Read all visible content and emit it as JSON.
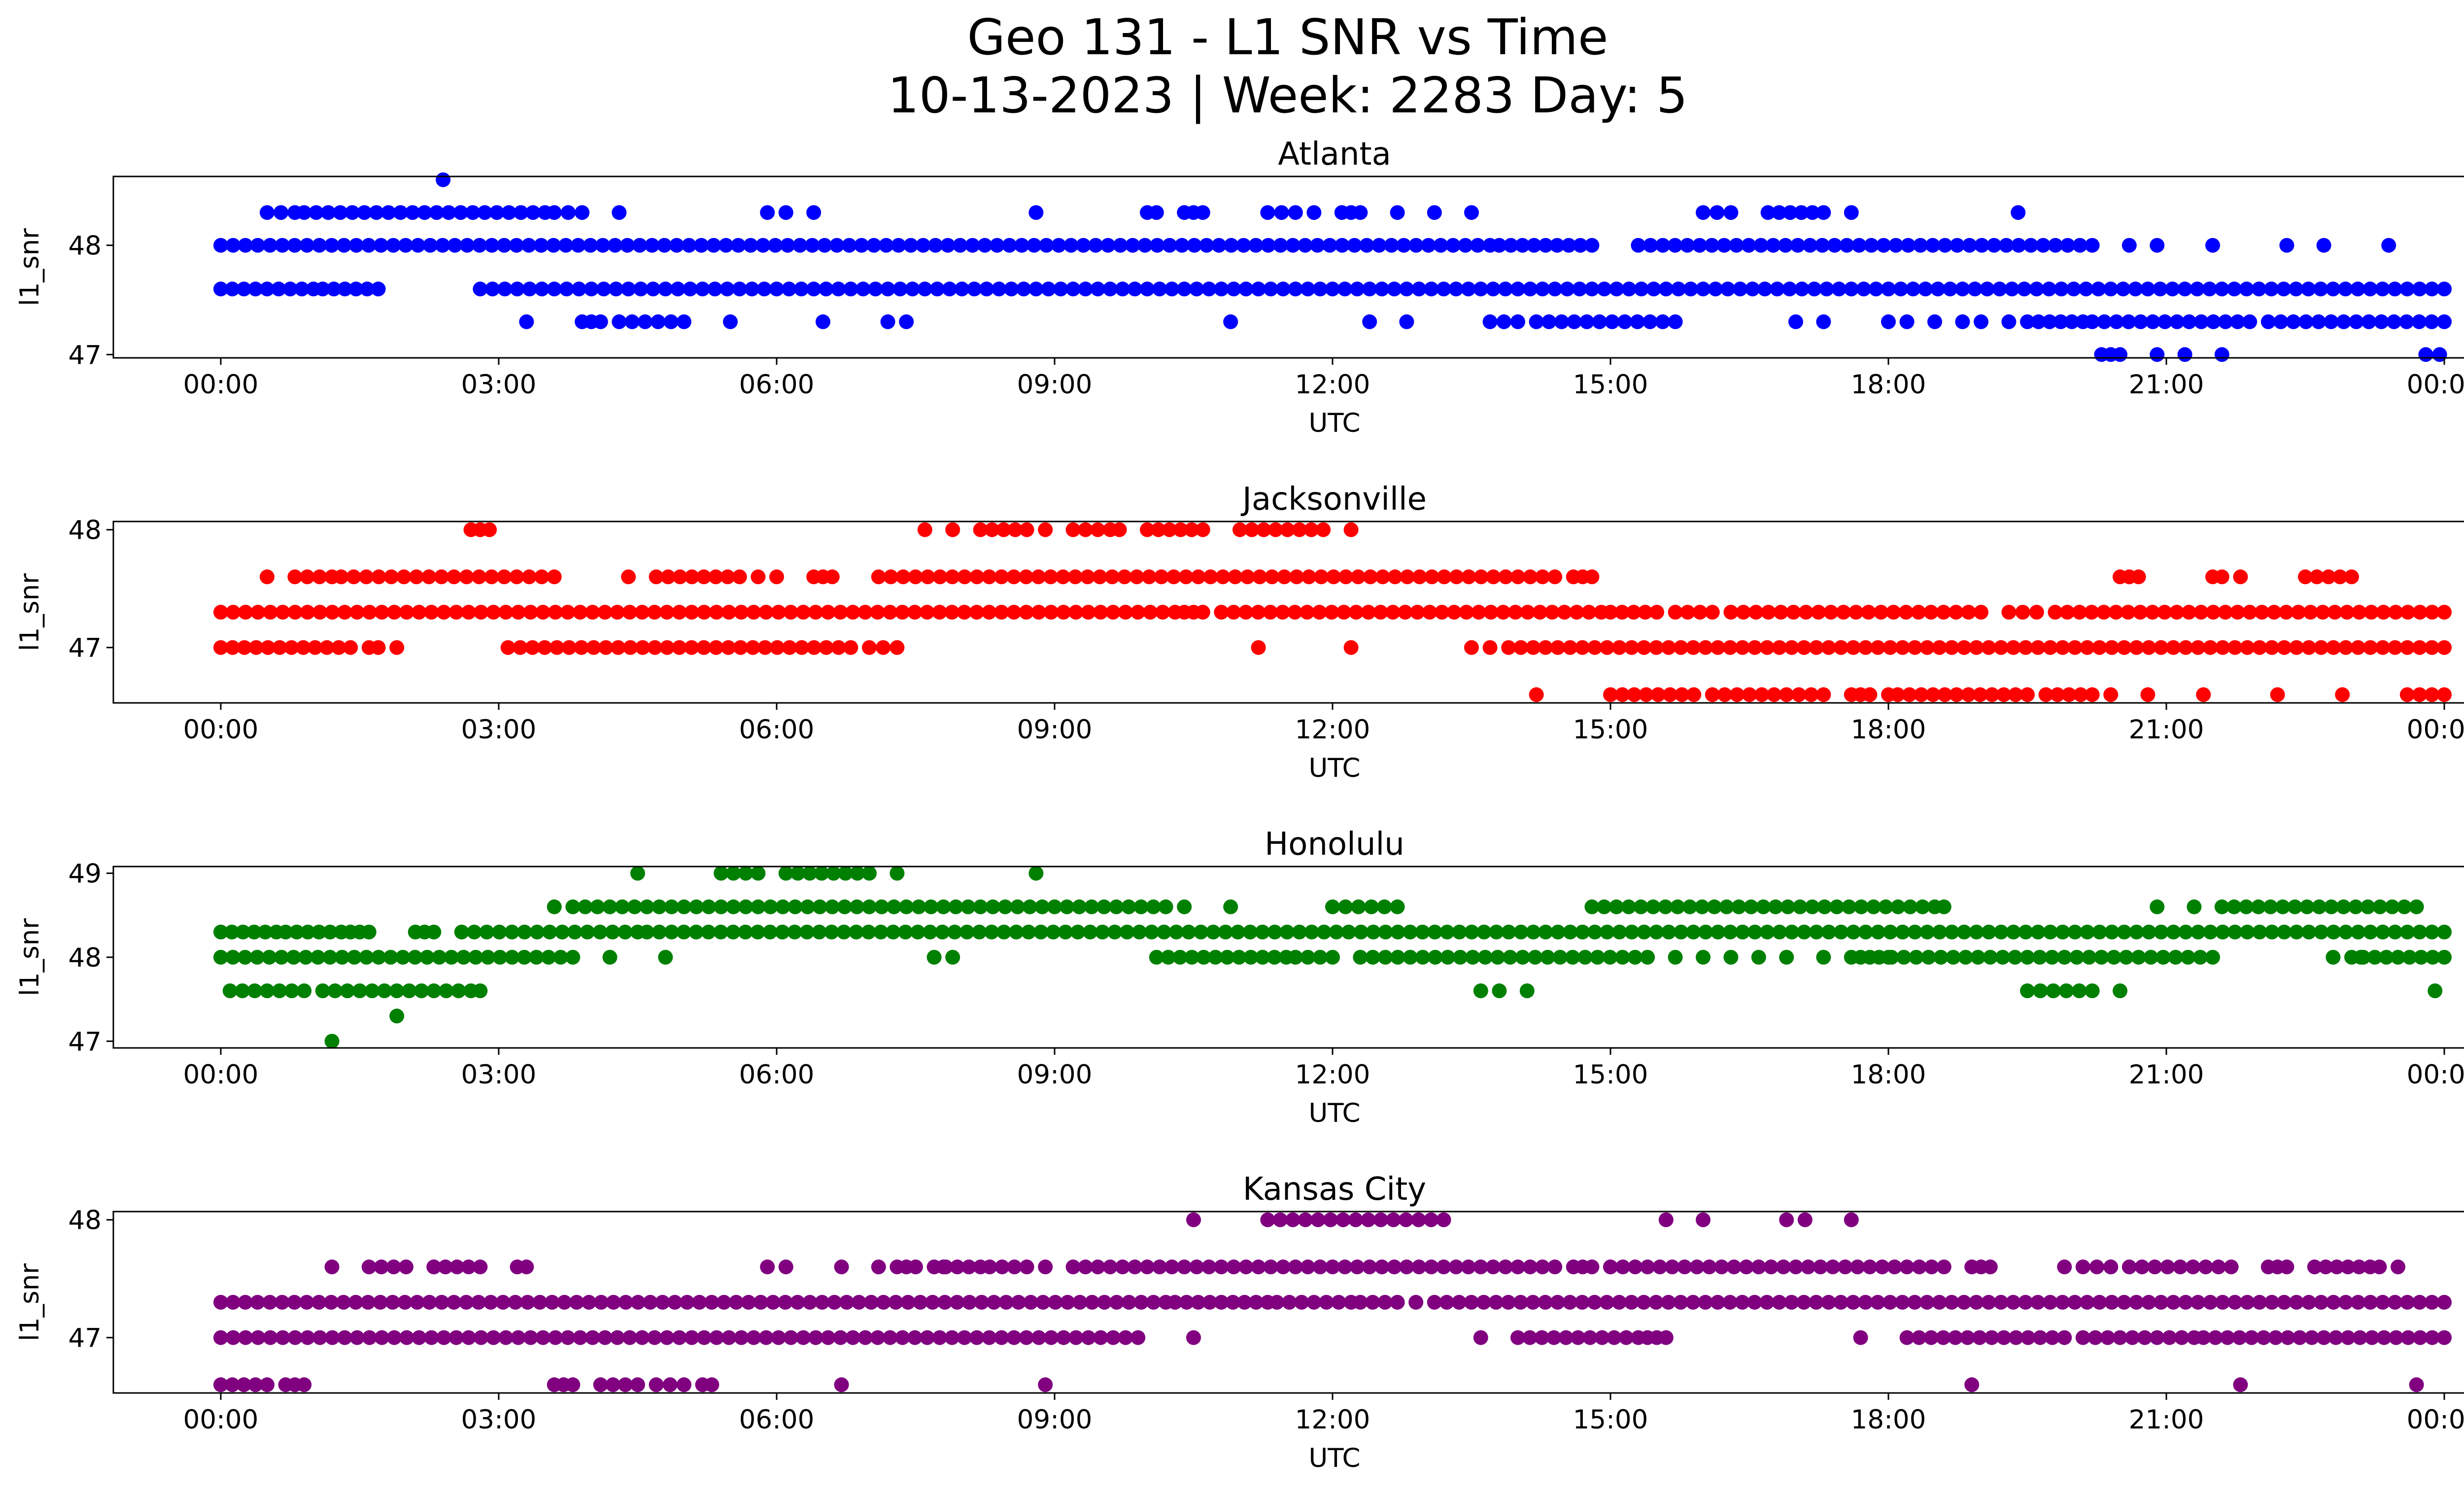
{
  "figure": {
    "title_line1": "Geo 131 - L1 SNR vs Time",
    "title_line2": "10-13-2023 | Week: 2283 Day: 5"
  },
  "chart_data": [
    {
      "type": "scatter",
      "title": "Atlanta",
      "xlabel": "UTC",
      "ylabel": "l1_snr",
      "color": "#0000ff",
      "xlim": [
        "00:00",
        "24:00"
      ],
      "ylim": [
        46.97,
        48.63
      ],
      "x_ticks": [
        "00:00",
        "03:00",
        "06:00",
        "09:00",
        "12:00",
        "15:00",
        "18:00",
        "21:00",
        "00:00"
      ],
      "y_ticks": [
        "47",
        "48"
      ],
      "y_tick_values": [
        47,
        48
      ],
      "bands": [
        {
          "y": 48.0,
          "segments": [
            [
              0.0,
              13.7
            ],
            [
              13.8,
              14.8
            ],
            [
              15.3,
              20.2
            ]
          ],
          "points": [
            20.6,
            20.9,
            21.5,
            22.3,
            22.7,
            23.4
          ]
        },
        {
          "y": 47.6,
          "segments": [
            [
              0.0,
              1.0
            ],
            [
              1.1,
              1.7
            ],
            [
              2.8,
              24.0
            ]
          ],
          "points": []
        },
        {
          "y": 48.3,
          "segments": [
            [
              0.5,
              0.8
            ],
            [
              0.9,
              3.5
            ],
            [
              3.6,
              3.9
            ],
            [
              10.0,
              10.1
            ],
            [
              10.4,
              10.6
            ],
            [
              11.3,
              11.6
            ],
            [
              12.1,
              12.3
            ],
            [
              16.0,
              16.3
            ],
            [
              16.7,
              17.3
            ]
          ],
          "points": [
            4.3,
            5.9,
            6.1,
            6.4,
            8.8,
            11.8,
            12.7,
            13.1,
            13.5,
            17.6,
            19.4
          ]
        },
        {
          "y": 47.3,
          "segments": [
            [
              3.9,
              4.1
            ],
            [
              4.3,
              5.0
            ],
            [
              13.7,
              14.0
            ],
            [
              14.2,
              15.7
            ],
            [
              19.5,
              20.1
            ],
            [
              20.2,
              21.9
            ],
            [
              22.1,
              24.0
            ]
          ],
          "points": [
            3.3,
            5.5,
            6.5,
            7.2,
            7.4,
            10.9,
            12.4,
            12.8,
            17.0,
            17.3,
            18.0,
            18.2,
            18.5,
            18.8,
            19.0,
            19.3
          ]
        },
        {
          "y": 47.0,
          "segments": [
            [
              20.3,
              20.5
            ]
          ],
          "points": [
            20.9,
            21.2,
            21.6,
            23.8,
            23.95
          ]
        },
        {
          "y": 48.6,
          "segments": [],
          "points": [
            2.4
          ]
        }
      ]
    },
    {
      "type": "scatter",
      "title": "Jacksonville",
      "xlabel": "UTC",
      "ylabel": "l1_snr",
      "color": "#ff0000",
      "xlim": [
        "00:00",
        "24:00"
      ],
      "ylim": [
        46.53,
        48.07
      ],
      "x_ticks": [
        "00:00",
        "03:00",
        "06:00",
        "09:00",
        "12:00",
        "15:00",
        "18:00",
        "21:00",
        "00:00"
      ],
      "y_ticks": [
        "47",
        "48"
      ],
      "y_tick_values": [
        47,
        48
      ],
      "bands": [
        {
          "y": 47.3,
          "segments": [
            [
              0.0,
              10.3
            ],
            [
              10.4,
              10.6
            ],
            [
              10.8,
              14.9
            ],
            [
              15.0,
              15.5
            ],
            [
              15.7,
              16.1
            ],
            [
              16.3,
              19.0
            ],
            [
              19.3,
              19.6
            ],
            [
              19.8,
              24.0
            ]
          ],
          "points": []
        },
        {
          "y": 47.0,
          "segments": [
            [
              0.0,
              1.4
            ],
            [
              1.6,
              1.7
            ],
            [
              3.1,
              6.8
            ],
            [
              7.0,
              7.3
            ],
            [
              13.9,
              24.0
            ]
          ],
          "points": [
            1.9,
            11.2,
            12.2,
            13.5,
            13.7
          ]
        },
        {
          "y": 47.6,
          "segments": [
            [
              0.8,
              1.2
            ],
            [
              1.3,
              3.6
            ],
            [
              4.7,
              5.6
            ],
            [
              6.4,
              6.6
            ],
            [
              7.1,
              14.4
            ],
            [
              14.6,
              14.8
            ],
            [
              20.5,
              20.7
            ],
            [
              21.5,
              21.6
            ],
            [
              22.5,
              23.0
            ]
          ],
          "points": [
            0.5,
            4.4,
            5.8,
            6.0,
            21.8
          ]
        },
        {
          "y": 48.0,
          "segments": [
            [
              2.7,
              2.9
            ],
            [
              8.2,
              8.7
            ],
            [
              9.2,
              9.6
            ],
            [
              10.0,
              10.6
            ],
            [
              11.0,
              11.9
            ]
          ],
          "points": [
            7.6,
            7.9,
            8.9,
            9.7,
            12.2
          ]
        },
        {
          "y": 46.6,
          "segments": [
            [
              15.0,
              15.9
            ],
            [
              16.1,
              17.3
            ],
            [
              17.6,
              17.8
            ],
            [
              18.1,
              19.5
            ],
            [
              19.7,
              20.2
            ],
            [
              23.6,
              24.0
            ]
          ],
          "points": [
            14.2,
            18.0,
            20.4,
            20.8,
            21.4,
            22.2,
            22.9
          ]
        }
      ]
    },
    {
      "type": "scatter",
      "title": "Honolulu",
      "xlabel": "UTC",
      "ylabel": "l1_snr",
      "color": "#008000",
      "xlim": [
        "00:00",
        "24:00"
      ],
      "ylim": [
        46.92,
        49.08
      ],
      "x_ticks": [
        "00:00",
        "03:00",
        "06:00",
        "09:00",
        "12:00",
        "15:00",
        "18:00",
        "21:00",
        "00:00"
      ],
      "y_ticks": [
        "47",
        "48",
        "49"
      ],
      "y_tick_values": [
        47,
        48,
        49
      ],
      "bands": [
        {
          "y": 48.3,
          "segments": [
            [
              0.0,
              0.6
            ],
            [
              0.7,
              1.3
            ],
            [
              1.4,
              1.6
            ],
            [
              2.1,
              2.3
            ],
            [
              2.6,
              4.5
            ],
            [
              4.6,
              24.0
            ]
          ],
          "points": []
        },
        {
          "y": 48.0,
          "segments": [
            [
              0.0,
              3.8
            ],
            [
              10.1,
              11.5
            ],
            [
              11.6,
              12.0
            ],
            [
              12.3,
              15.4
            ],
            [
              17.6,
              17.8
            ],
            [
              17.9,
              21.5
            ],
            [
              23.0,
              24.0
            ]
          ],
          "points": [
            4.2,
            4.8,
            7.7,
            7.9,
            15.7,
            16.0,
            16.3,
            16.6,
            16.9,
            17.3,
            18.0,
            22.8,
            23.1
          ]
        },
        {
          "y": 48.6,
          "segments": [
            [
              3.8,
              10.2
            ],
            [
              12.0,
              12.7
            ],
            [
              14.8,
              18.5
            ],
            [
              21.6,
              23.7
            ]
          ],
          "points": [
            3.6,
            10.4,
            10.9,
            18.6,
            20.9,
            21.3
          ]
        },
        {
          "y": 47.6,
          "segments": [
            [
              0.1,
              0.9
            ],
            [
              1.1,
              2.7
            ],
            [
              19.5,
              20.2
            ]
          ],
          "points": [
            2.8,
            13.6,
            13.8,
            14.1,
            20.5,
            23.9
          ]
        },
        {
          "y": 49.0,
          "segments": [
            [
              5.4,
              5.8
            ],
            [
              6.1,
              7.0
            ]
          ],
          "points": [
            4.5,
            7.3,
            8.8
          ]
        },
        {
          "y": 47.3,
          "segments": [],
          "points": [
            1.9
          ]
        },
        {
          "y": 47.0,
          "segments": [],
          "points": [
            1.2
          ]
        }
      ]
    },
    {
      "type": "scatter",
      "title": "Kansas City",
      "xlabel": "UTC",
      "ylabel": "l1_snr",
      "color": "#800080",
      "xlim": [
        "00:00",
        "24:00"
      ],
      "ylim": [
        46.53,
        48.07
      ],
      "x_ticks": [
        "00:00",
        "03:00",
        "06:00",
        "09:00",
        "12:00",
        "15:00",
        "18:00",
        "21:00",
        "00:00"
      ],
      "y_ticks": [
        "47",
        "48"
      ],
      "y_tick_values": [
        47,
        48
      ],
      "bands": [
        {
          "y": 47.3,
          "segments": [
            [
              0.0,
              10.2
            ],
            [
              10.3,
              11.3
            ],
            [
              11.4,
              12.2
            ],
            [
              12.3,
              12.7
            ],
            [
              13.1,
              24.0
            ]
          ],
          "points": [
            12.9
          ]
        },
        {
          "y": 47.0,
          "segments": [
            [
              0.0,
              9.9
            ],
            [
              14.0,
              15.3
            ],
            [
              15.4,
              15.6
            ],
            [
              18.2,
              19.9
            ],
            [
              20.1,
              21.3
            ],
            [
              21.4,
              24.0
            ]
          ],
          "points": [
            10.5,
            13.6,
            17.7
          ]
        },
        {
          "y": 47.6,
          "segments": [
            [
              1.6,
              2.0
            ],
            [
              2.3,
              2.8
            ],
            [
              3.2,
              3.3
            ],
            [
              7.3,
              7.5
            ],
            [
              7.7,
              8.2
            ],
            [
              8.3,
              8.7
            ],
            [
              9.2,
              14.4
            ],
            [
              14.6,
              14.8
            ],
            [
              15.0,
              18.6
            ],
            [
              18.9,
              19.1
            ],
            [
              20.1,
              20.4
            ],
            [
              20.6,
              21.7
            ],
            [
              22.1,
              22.3
            ],
            [
              22.6,
              23.2
            ]
          ],
          "points": [
            1.2,
            2.3,
            5.9,
            6.1,
            6.7,
            7.1,
            7.8,
            8.9,
            15.0,
            19.9,
            20.4,
            23.3,
            23.5
          ]
        },
        {
          "y": 48.0,
          "segments": [
            [
              11.3,
              13.2
            ]
          ],
          "points": [
            10.5,
            15.6,
            16.0,
            16.9,
            17.1,
            17.6
          ]
        },
        {
          "y": 46.6,
          "segments": [
            [
              0.0,
              0.5
            ],
            [
              0.7,
              0.9
            ],
            [
              3.6,
              3.8
            ],
            [
              4.1,
              4.5
            ],
            [
              4.7,
              5.0
            ]
          ],
          "points": [
            5.2,
            5.3,
            6.7,
            8.9,
            18.9,
            21.8,
            23.7
          ]
        }
      ]
    }
  ]
}
